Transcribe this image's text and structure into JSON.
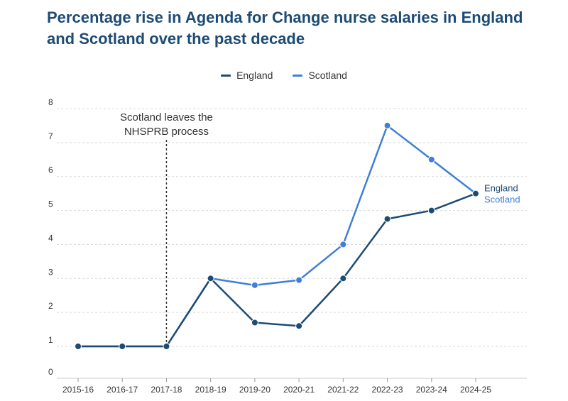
{
  "chart_data": {
    "type": "line",
    "title": "Percentage rise in Agenda for Change nurse salaries in England and Scotland over the past decade",
    "xlabel": "",
    "ylabel": "",
    "categories": [
      "2015-16",
      "2016-17",
      "2017-18",
      "2018-19",
      "2019-20",
      "2020-21",
      "2021-22",
      "2022-23",
      "2023-24",
      "2024-25"
    ],
    "yticks": [
      "0",
      "1",
      "2",
      "3",
      "4",
      "5",
      "6",
      "7",
      "8"
    ],
    "ylim": [
      0,
      8
    ],
    "grid": "horizontal dashed",
    "legend_position": "top-center",
    "series": [
      {
        "name": "England",
        "color": "#1d4b73",
        "values": [
          1,
          1,
          1,
          3,
          1.7,
          1.6,
          3,
          4.75,
          5,
          5.5
        ]
      },
      {
        "name": "Scotland",
        "color": "#3f7fd8",
        "values": [
          1,
          1,
          1,
          3,
          2.8,
          2.95,
          4,
          7.5,
          6.5,
          5.5
        ]
      }
    ],
    "annotation": {
      "lines": [
        "Scotland leaves the",
        "NHSPRB process"
      ],
      "at_category": "2017-18"
    }
  }
}
